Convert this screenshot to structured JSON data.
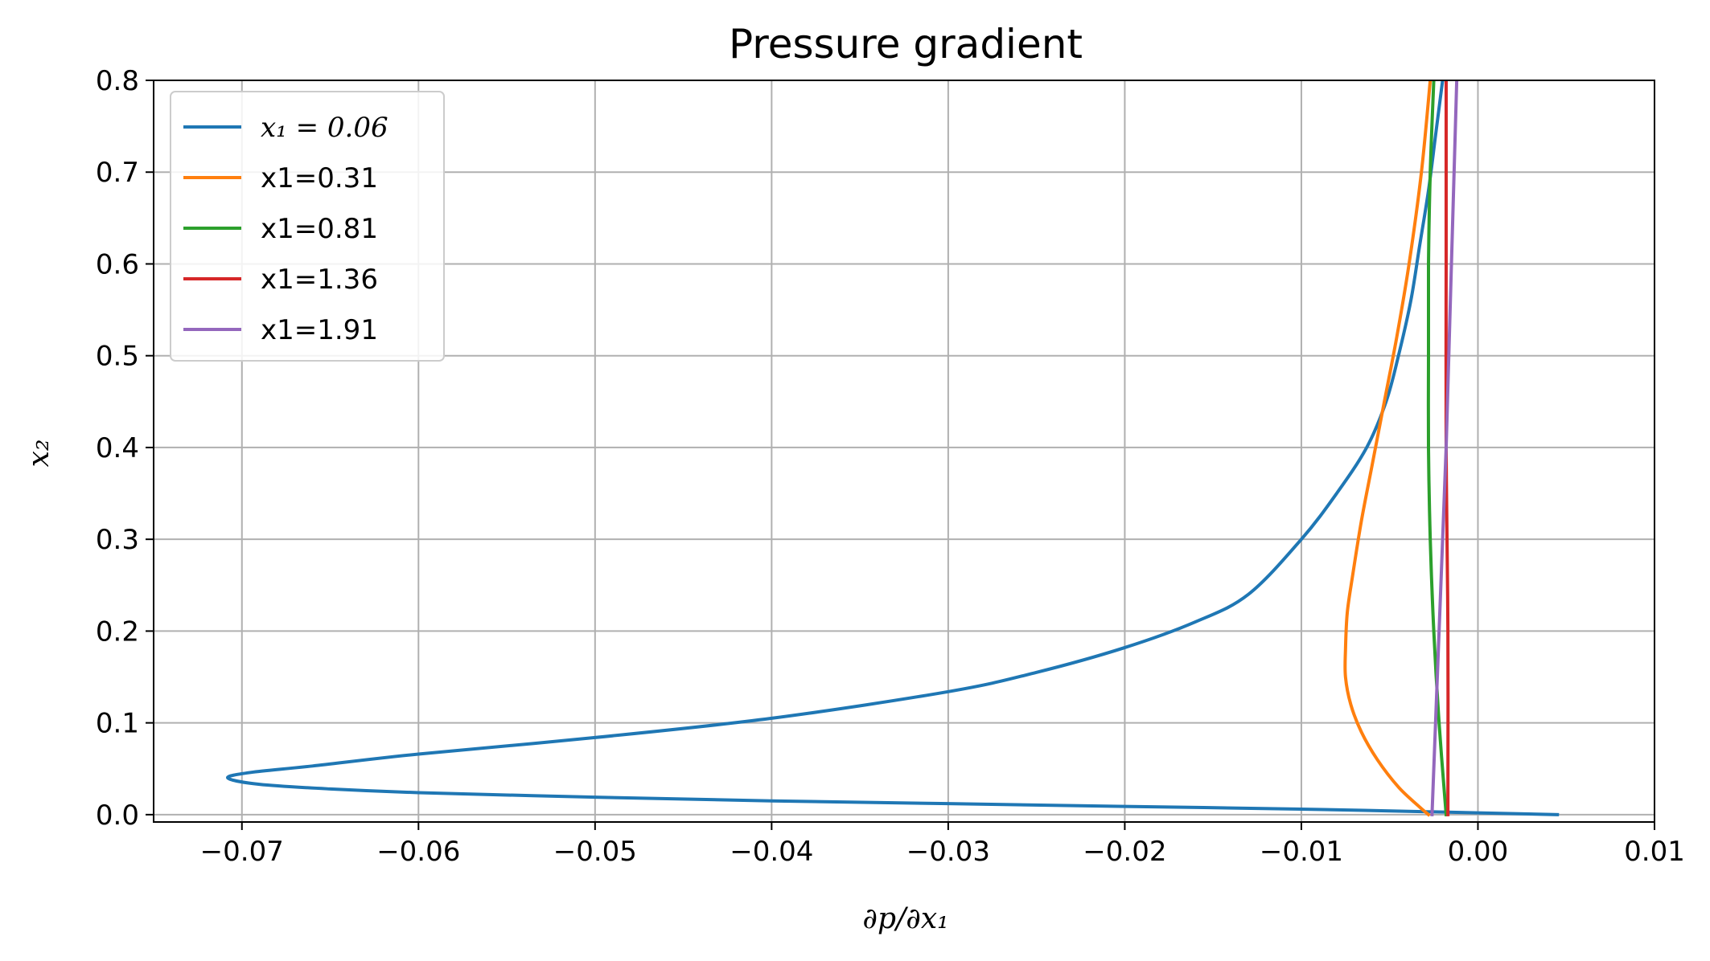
{
  "chart_data": {
    "type": "line",
    "title": "Pressure gradient",
    "xlabel": "∂p/∂x₁",
    "ylabel": "x₂",
    "xlim": [
      -0.075,
      0.01
    ],
    "ylim": [
      -0.008,
      0.8
    ],
    "xticks": [
      -0.07,
      -0.06,
      -0.05,
      -0.04,
      -0.03,
      -0.02,
      -0.01,
      0.0,
      0.01
    ],
    "xtick_labels": [
      "−0.07",
      "−0.06",
      "−0.05",
      "−0.04",
      "−0.03",
      "−0.02",
      "−0.01",
      "0.00",
      "0.01"
    ],
    "yticks": [
      0.0,
      0.1,
      0.2,
      0.3,
      0.4,
      0.5,
      0.6,
      0.7,
      0.8
    ],
    "ytick_labels": [
      "0.0",
      "0.1",
      "0.2",
      "0.3",
      "0.4",
      "0.5",
      "0.6",
      "0.7",
      "0.8"
    ],
    "grid": true,
    "legend_position": "top-left",
    "series": [
      {
        "name": "x₁ = 0.06",
        "color": "#1f77b4",
        "points": [
          [
            0.0045,
            0.0
          ],
          [
            0.0,
            0.002
          ],
          [
            -0.01,
            0.006
          ],
          [
            -0.02,
            0.009
          ],
          [
            -0.03,
            0.012
          ],
          [
            -0.04,
            0.015
          ],
          [
            -0.05,
            0.019
          ],
          [
            -0.06,
            0.024
          ],
          [
            -0.065,
            0.028
          ],
          [
            -0.069,
            0.033
          ],
          [
            -0.0708,
            0.04
          ],
          [
            -0.0695,
            0.046
          ],
          [
            -0.066,
            0.053
          ],
          [
            -0.06,
            0.066
          ],
          [
            -0.05,
            0.084
          ],
          [
            -0.04,
            0.105
          ],
          [
            -0.03,
            0.134
          ],
          [
            -0.025,
            0.155
          ],
          [
            -0.02,
            0.182
          ],
          [
            -0.016,
            0.21
          ],
          [
            -0.013,
            0.24
          ],
          [
            -0.01,
            0.3
          ],
          [
            -0.008,
            0.35
          ],
          [
            -0.0063,
            0.4
          ],
          [
            -0.0052,
            0.45
          ],
          [
            -0.0045,
            0.5
          ],
          [
            -0.0038,
            0.56
          ],
          [
            -0.0033,
            0.62
          ],
          [
            -0.0028,
            0.68
          ],
          [
            -0.0024,
            0.74
          ],
          [
            -0.002,
            0.8
          ]
        ]
      },
      {
        "name": "x1=0.31",
        "color": "#ff7f0e",
        "points": [
          [
            -0.0028,
            0.0
          ],
          [
            -0.0034,
            0.01
          ],
          [
            -0.0045,
            0.03
          ],
          [
            -0.0057,
            0.06
          ],
          [
            -0.0066,
            0.09
          ],
          [
            -0.0072,
            0.12
          ],
          [
            -0.0075,
            0.15
          ],
          [
            -0.0075,
            0.18
          ],
          [
            -0.0074,
            0.22
          ],
          [
            -0.0071,
            0.26
          ],
          [
            -0.0066,
            0.32
          ],
          [
            -0.006,
            0.38
          ],
          [
            -0.0053,
            0.45
          ],
          [
            -0.0046,
            0.52
          ],
          [
            -0.0039,
            0.6
          ],
          [
            -0.0032,
            0.7
          ],
          [
            -0.0027,
            0.8
          ]
        ]
      },
      {
        "name": "x1=0.81",
        "color": "#2ca02c",
        "points": [
          [
            -0.0018,
            0.0
          ],
          [
            -0.0022,
            0.1
          ],
          [
            -0.0025,
            0.2
          ],
          [
            -0.0027,
            0.3
          ],
          [
            -0.0028,
            0.4
          ],
          [
            -0.0028,
            0.5
          ],
          [
            -0.0028,
            0.6
          ],
          [
            -0.0027,
            0.7
          ],
          [
            -0.0025,
            0.8
          ]
        ]
      },
      {
        "name": "x1=1.36",
        "color": "#d62728",
        "points": [
          [
            -0.0017,
            0.0
          ],
          [
            -0.0017,
            0.2
          ],
          [
            -0.0018,
            0.4
          ],
          [
            -0.0018,
            0.6
          ],
          [
            -0.0018,
            0.8
          ]
        ]
      },
      {
        "name": "x1=1.91",
        "color": "#9467bd",
        "points": [
          [
            -0.0026,
            0.0
          ],
          [
            -0.0022,
            0.2
          ],
          [
            -0.0018,
            0.4
          ],
          [
            -0.0015,
            0.6
          ],
          [
            -0.0012,
            0.8
          ]
        ]
      }
    ]
  }
}
